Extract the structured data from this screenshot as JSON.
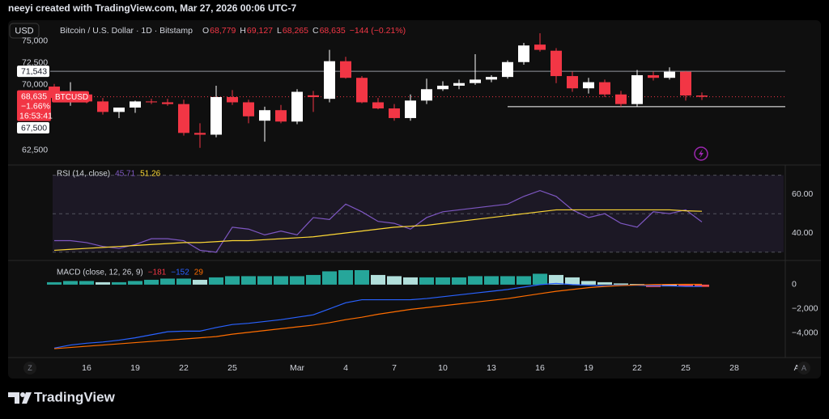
{
  "header": {
    "title": "neeyi created with TradingView.com, Mar 27, 2026 00:06 UTC-7"
  },
  "toolbar": {
    "currency": "USD",
    "symbol": "Bitcoin / U.S. Dollar · 1D · Bitstamp",
    "ohlc": [
      {
        "label": "O",
        "value": "68,779"
      },
      {
        "label": "H",
        "value": "69,127"
      },
      {
        "label": "L",
        "value": "68,265"
      },
      {
        "label": "C",
        "value": "68,635"
      }
    ],
    "change": "−144 (−0.21%)"
  },
  "footer": {
    "brand": "TradingView",
    "left_button": "Z",
    "right_button": "A"
  },
  "chart_data": [
    {
      "type": "candlestick",
      "categories": [
        null,
        "16",
        null,
        null,
        "19",
        null,
        null,
        "22",
        null,
        null,
        "25",
        null,
        null,
        null,
        "Mar",
        null,
        null,
        "4",
        null,
        null,
        "7",
        null,
        null,
        "10",
        null,
        null,
        "13",
        null,
        null,
        "16",
        null,
        null,
        "19",
        null,
        null,
        "22",
        null,
        null,
        "25",
        null,
        null,
        "28",
        null,
        null,
        null,
        "Ap"
      ],
      "open": [
        69800,
        68500,
        68900,
        68100,
        66900,
        67400,
        68100,
        68000,
        67800,
        64500,
        64300,
        68600,
        68000,
        65900,
        67100,
        65800,
        68800,
        68400,
        72700,
        70800,
        68000,
        67300,
        66200,
        68200,
        69500,
        69900,
        70200,
        70600,
        70900,
        72600,
        74600,
        73900,
        71000,
        69600,
        70300,
        68900,
        67800,
        71100,
        70800,
        71500,
        68779,
        null,
        null,
        null,
        null,
        null
      ],
      "high": [
        70100,
        70300,
        69100,
        68500,
        67400,
        68200,
        68400,
        68400,
        68300,
        65600,
        69900,
        69400,
        68300,
        67500,
        67700,
        69500,
        69300,
        74000,
        73200,
        71000,
        68500,
        67800,
        68900,
        70700,
        70400,
        70600,
        73500,
        71100,
        72800,
        74800,
        75900,
        74200,
        71500,
        70800,
        70600,
        69300,
        71700,
        71500,
        72000,
        71600,
        69127,
        null,
        null,
        null,
        null,
        null
      ],
      "low": [
        68300,
        67600,
        67900,
        66600,
        66200,
        66800,
        67800,
        67600,
        64200,
        62800,
        64000,
        67700,
        65600,
        63500,
        65600,
        65500,
        66900,
        68000,
        70700,
        67900,
        67200,
        65900,
        65900,
        67800,
        69300,
        69500,
        70000,
        70300,
        70700,
        72300,
        73800,
        70200,
        69200,
        69000,
        68600,
        67500,
        67500,
        70500,
        70600,
        68200,
        68265,
        null,
        null,
        null,
        null,
        null
      ],
      "close": [
        68500,
        68900,
        68100,
        66900,
        67400,
        68100,
        68000,
        67800,
        64500,
        64300,
        68600,
        68000,
        66400,
        67100,
        65800,
        69200,
        68600,
        72700,
        70800,
        68000,
        67300,
        66200,
        68200,
        69500,
        69900,
        70200,
        70600,
        70900,
        72600,
        74500,
        74000,
        71000,
        69600,
        70300,
        68900,
        67800,
        71100,
        70800,
        71500,
        68779,
        68635,
        null,
        null,
        null,
        null,
        null
      ],
      "up_color": "#ffffff",
      "down_color": "#f23645",
      "ylim": [
        61200,
        76000
      ],
      "yticks": [
        {
          "value": 62500,
          "label": "62,500"
        },
        {
          "value": 70000,
          "label": "70,000"
        },
        {
          "value": 72500,
          "label": "72,500"
        },
        {
          "value": 75000,
          "label": "75,000"
        }
      ],
      "hlines": [
        {
          "value": 71543,
          "label": "71,543",
          "color": "#9598a1"
        },
        {
          "value": 67500,
          "label": "67,500",
          "color": "#ffffff"
        }
      ],
      "last": {
        "value": 68635,
        "label": "68,635",
        "change": "−1.66%",
        "countdown": "16:53:41",
        "symbol": "BTCUSD",
        "color": "#f23645"
      }
    },
    {
      "type": "line",
      "legend": {
        "name": "RSI (14, close)",
        "values": [
          "45.71",
          "51.26"
        ]
      },
      "series": [
        {
          "color": "#7e57c2",
          "values": [
            36,
            36,
            35,
            33,
            32,
            34,
            37,
            37,
            36,
            31,
            30,
            43,
            42,
            39,
            41,
            39,
            48,
            47,
            55,
            51,
            46,
            45,
            42,
            48,
            51,
            52,
            53,
            54,
            55,
            59,
            62,
            59,
            52,
            48,
            50,
            45,
            43,
            51,
            50,
            52,
            45.71,
            null,
            null,
            null,
            null,
            null
          ]
        },
        {
          "color": "#fdd835",
          "values": [
            31,
            31.5,
            32,
            32.5,
            33,
            33.5,
            34,
            34.5,
            35,
            35,
            35.5,
            36,
            36,
            36.5,
            37,
            37.5,
            38,
            39,
            40,
            41,
            42,
            43,
            43.5,
            44,
            45,
            46,
            47,
            48,
            49,
            50,
            51,
            52,
            52,
            52,
            52,
            52,
            52,
            52,
            52,
            51.5,
            51.26,
            null,
            null,
            null,
            null,
            null
          ]
        }
      ],
      "bands": [
        70,
        50,
        30
      ],
      "band_fill": "rgba(126,87,194,0.12)",
      "ylim": [
        29.5,
        71.5
      ],
      "yticks": [
        {
          "value": 40,
          "label": "40.00"
        },
        {
          "value": 60,
          "label": "60.00"
        }
      ]
    },
    {
      "type": "macd",
      "legend": {
        "name": "MACD (close, 12, 26, 9)",
        "values": [
          "−181",
          "−152",
          "29"
        ]
      },
      "histogram": [
        200,
        300,
        300,
        200,
        200,
        300,
        400,
        500,
        500,
        400,
        600,
        700,
        700,
        700,
        700,
        700,
        800,
        1100,
        1200,
        1200,
        800,
        700,
        600,
        600,
        600,
        600,
        700,
        700,
        700,
        700,
        900,
        800,
        600,
        300,
        200,
        100,
        50,
        -200,
        -150,
        -150,
        -181,
        null,
        null,
        null,
        null,
        null
      ],
      "histogram_colors": {
        "grow_above": "#26a69a",
        "fall_above": "#b2dfdb",
        "grow_below": "#ff5252",
        "fall_below": "#ffcdd2"
      },
      "series": [
        {
          "color": "#2962ff",
          "values": [
            -5250,
            -5000,
            -4850,
            -4750,
            -4600,
            -4400,
            -4150,
            -3900,
            -3850,
            -3850,
            -3550,
            -3300,
            -3200,
            -3050,
            -2900,
            -2700,
            -2500,
            -2000,
            -1500,
            -1250,
            -1250,
            -1250,
            -1250,
            -1150,
            -1000,
            -850,
            -700,
            -550,
            -400,
            -200,
            0,
            100,
            0,
            -50,
            -100,
            -50,
            -50,
            -100,
            -100,
            -150,
            -152,
            null,
            null,
            null,
            null,
            null
          ]
        },
        {
          "color": "#ff6d00",
          "values": [
            -5300,
            -5200,
            -5100,
            -5000,
            -4900,
            -4800,
            -4700,
            -4600,
            -4500,
            -4400,
            -4300,
            -4100,
            -3950,
            -3800,
            -3650,
            -3500,
            -3350,
            -3150,
            -2900,
            -2700,
            -2450,
            -2250,
            -2050,
            -1900,
            -1750,
            -1600,
            -1450,
            -1300,
            -1150,
            -950,
            -750,
            -550,
            -400,
            -250,
            -150,
            -80,
            -30,
            0,
            20,
            30,
            29,
            null,
            null,
            null,
            null,
            null
          ]
        }
      ],
      "legend_colors": [
        "#f23645",
        "#2962ff",
        "#ff6d00"
      ],
      "ylim": [
        -5900,
        1800
      ],
      "yticks": [
        {
          "value": -4000,
          "label": "−4,000"
        },
        {
          "value": -2000,
          "label": "−2,000"
        },
        0
      ]
    }
  ]
}
